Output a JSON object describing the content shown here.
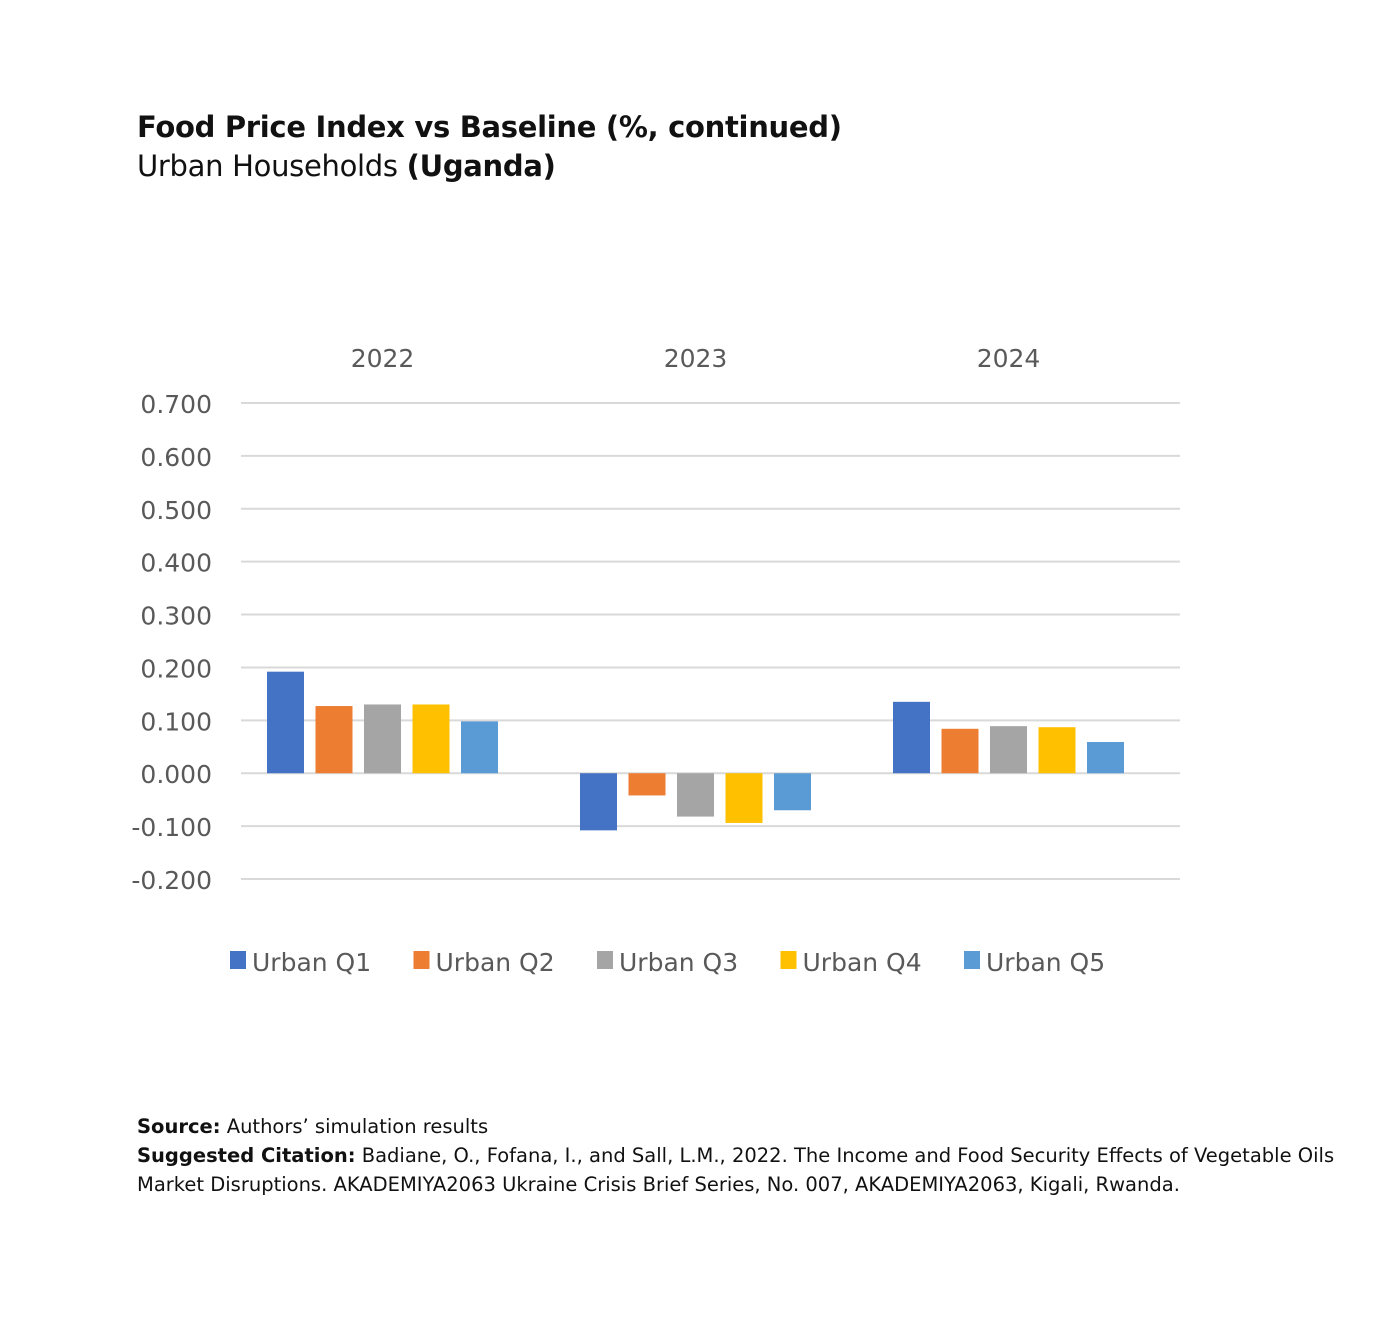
{
  "title": "Food Price Index vs Baseline (%, continued)",
  "subtitle": {
    "prefix": "Urban Households ",
    "emphasis": "(Uganda)"
  },
  "chart_data": {
    "type": "bar",
    "categories": [
      "2022",
      "2023",
      "2024"
    ],
    "category_labels_position": "top",
    "series": [
      {
        "name": "Urban Q1",
        "color": "#4472C4",
        "values": [
          0.192,
          -0.108,
          0.135
        ]
      },
      {
        "name": "Urban Q2",
        "color": "#ED7D31",
        "values": [
          0.127,
          -0.042,
          0.084
        ]
      },
      {
        "name": "Urban Q3",
        "color": "#A5A5A5",
        "values": [
          0.13,
          -0.082,
          0.089
        ]
      },
      {
        "name": "Urban Q4",
        "color": "#FFC000",
        "values": [
          0.13,
          -0.094,
          0.087
        ]
      },
      {
        "name": "Urban Q5",
        "color": "#5B9BD5",
        "values": [
          0.098,
          -0.07,
          0.059
        ]
      }
    ],
    "ylim": [
      -0.2,
      0.7
    ],
    "yticks": [
      "0.700",
      "0.600",
      "0.500",
      "0.400",
      "0.300",
      "0.200",
      "0.100",
      "0.000",
      "-0.100",
      "-0.200"
    ],
    "grid": true,
    "legend": "bottom"
  },
  "source": {
    "label": "Source:",
    "text": " Authors’ simulation results"
  },
  "citation": {
    "label": "Suggested Citation:",
    "text": " Badiane, O., Fofana, I., and Sall, L.M., 2022. The Income and Food Security Effects of Vegetable Oils Market Disruptions. AKADEMIYA2063 Ukraine Crisis Brief Series, No. 007, AKADEMIYA2063, Kigali, Rwanda."
  }
}
